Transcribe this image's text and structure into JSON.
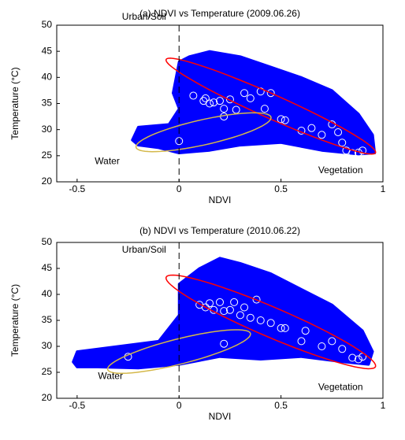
{
  "chart_data": [
    {
      "type": "scatter",
      "title": "(a) NDVI vs Temperature (2009.06.26)",
      "x_label": "NDVI",
      "y_label": "Temperature (°C)",
      "xlim": [
        -0.6,
        1
      ],
      "ylim": [
        20,
        50
      ],
      "xticks": [
        -0.5,
        0,
        0.5,
        1
      ],
      "yticks": [
        20,
        25,
        30,
        35,
        40,
        45,
        50
      ],
      "vline": 0,
      "series": [
        {
          "shape": "region",
          "color": "#0000ff",
          "x": [
            -0.23,
            -0.2,
            -0.05,
            0.0,
            -0.03,
            0.0,
            0.05,
            0.15,
            0.3,
            0.45,
            0.6,
            0.75,
            0.88,
            0.95,
            0.96,
            0.88,
            0.7,
            0.5,
            0.3,
            0.15,
            0.0,
            -0.1,
            -0.2
          ],
          "y": [
            28,
            30.5,
            31,
            34,
            37,
            43,
            44,
            45,
            44,
            42,
            40,
            37.5,
            33,
            29,
            25.5,
            25.3,
            26,
            27.5,
            27,
            26,
            25.5,
            26.5,
            27
          ]
        },
        {
          "shape": "circle",
          "color": "#ffffff",
          "x": [
            0,
            0.07,
            0.12,
            0.13,
            0.15,
            0.17,
            0.2,
            0.22,
            0.25,
            0.28,
            0.32,
            0.35,
            0.4,
            0.42,
            0.45,
            0.5,
            0.52,
            0.6,
            0.65,
            0.7,
            0.75,
            0.78,
            0.8,
            0.82,
            0.85,
            0.88,
            0.9,
            0.22
          ],
          "y": [
            27.8,
            36.5,
            35.5,
            36,
            35,
            35.2,
            35.5,
            34,
            35.8,
            33.8,
            37,
            36,
            37.3,
            34,
            37,
            32,
            31.8,
            29.8,
            30.3,
            29,
            31,
            29.5,
            27.5,
            26,
            25.5,
            25.6,
            26,
            32.5
          ]
        }
      ],
      "ellipses": [
        {
          "color": "#ff0000",
          "center": [
            0.45,
            34.5
          ],
          "axis_a": [
            0.5,
            -8
          ],
          "axis_b": [
            -0.12,
            4.5
          ]
        },
        {
          "color": "#d4b84a",
          "center": [
            0.12,
            29.5
          ],
          "axis_a": [
            0.33,
            3
          ],
          "axis_b": [
            -0.03,
            2.2
          ]
        }
      ],
      "annotations": [
        "Urban/Soil",
        "Water",
        "Vegetation"
      ]
    },
    {
      "type": "scatter",
      "title": "(b) NDVI vs Temperature (2010.06.22)",
      "x_label": "NDVI",
      "y_label": "Temperature (°C)",
      "xlim": [
        -0.6,
        1
      ],
      "ylim": [
        20,
        50
      ],
      "xticks": [
        -0.5,
        0,
        0.5,
        1
      ],
      "yticks": [
        20,
        25,
        30,
        35,
        40,
        45,
        50
      ],
      "vline": 0,
      "series": [
        {
          "shape": "region",
          "color": "#0000ff",
          "x": [
            -0.52,
            -0.5,
            -0.3,
            -0.1,
            0.0,
            0.0,
            0.1,
            0.2,
            0.3,
            0.45,
            0.6,
            0.75,
            0.9,
            0.95,
            0.93,
            0.8,
            0.6,
            0.4,
            0.2,
            0.0,
            -0.2,
            -0.4,
            -0.5
          ],
          "y": [
            27,
            29,
            30,
            31,
            36,
            42,
            45,
            47,
            46,
            44,
            41,
            38,
            33,
            29,
            26.5,
            27,
            28,
            27.5,
            28,
            26.5,
            25.8,
            26,
            26
          ]
        },
        {
          "shape": "circle",
          "color": "#ffffff",
          "x": [
            0.1,
            0.13,
            0.15,
            0.17,
            0.2,
            0.22,
            0.25,
            0.27,
            0.3,
            0.32,
            0.35,
            0.38,
            0.4,
            0.45,
            0.5,
            0.52,
            0.6,
            0.62,
            0.7,
            0.75,
            0.8,
            0.85,
            0.88,
            0.9,
            0.22,
            -0.25
          ],
          "y": [
            38,
            37.5,
            38.3,
            37,
            38.5,
            36.8,
            37,
            38.5,
            36,
            37.5,
            35.5,
            39,
            35,
            34.5,
            33.5,
            33.5,
            31,
            33,
            30,
            31,
            29.5,
            27.8,
            27.5,
            28,
            30.5,
            28
          ]
        }
      ],
      "ellipses": [
        {
          "color": "#ff0000",
          "center": [
            0.45,
            34.7
          ],
          "axis_a": [
            0.5,
            -7.5
          ],
          "axis_b": [
            -0.12,
            5
          ]
        },
        {
          "color": "#d4b84a",
          "center": [
            0,
            29
          ],
          "axis_a": [
            0.35,
            3.5
          ],
          "axis_b": [
            -0.02,
            2.3
          ]
        }
      ],
      "annotations": [
        "Urban/Soil",
        "Water",
        "Vegetation"
      ]
    }
  ]
}
